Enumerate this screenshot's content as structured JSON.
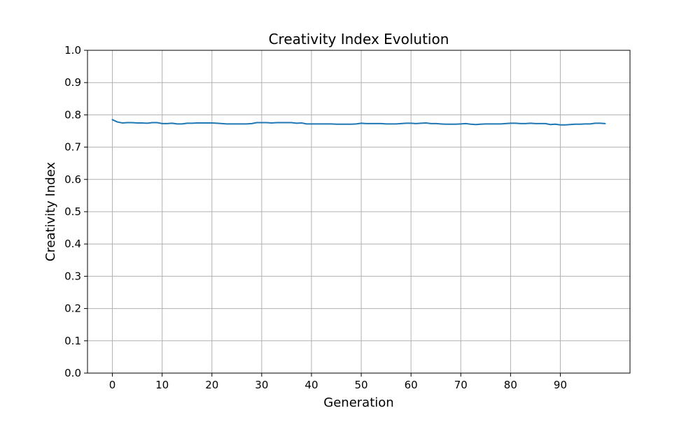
{
  "chart_data": {
    "type": "line",
    "title": "Creativity Index Evolution",
    "xlabel": "Generation",
    "ylabel": "Creativity Index",
    "xlim": [
      -5,
      104
    ],
    "ylim": [
      0,
      1
    ],
    "x_ticks": [
      0,
      10,
      20,
      30,
      40,
      50,
      60,
      70,
      80,
      90
    ],
    "y_ticks": [
      0.0,
      0.1,
      0.2,
      0.3,
      0.4,
      0.5,
      0.6,
      0.7,
      0.8,
      0.9,
      1.0
    ],
    "x_tick_labels": [
      "0",
      "10",
      "20",
      "30",
      "40",
      "50",
      "60",
      "70",
      "80",
      "90"
    ],
    "y_tick_labels": [
      "0.0",
      "0.1",
      "0.2",
      "0.3",
      "0.4",
      "0.5",
      "0.6",
      "0.7",
      "0.8",
      "0.9",
      "1.0"
    ],
    "grid": true,
    "series": [
      {
        "color": "#1f77b4",
        "x": [
          0,
          1,
          2,
          3,
          4,
          5,
          6,
          7,
          8,
          9,
          10,
          11,
          12,
          13,
          14,
          15,
          16,
          17,
          18,
          19,
          20,
          21,
          22,
          23,
          24,
          25,
          26,
          27,
          28,
          29,
          30,
          31,
          32,
          33,
          34,
          35,
          36,
          37,
          38,
          39,
          40,
          41,
          42,
          43,
          44,
          45,
          46,
          47,
          48,
          49,
          50,
          51,
          52,
          53,
          54,
          55,
          56,
          57,
          58,
          59,
          60,
          61,
          62,
          63,
          64,
          65,
          66,
          67,
          68,
          69,
          70,
          71,
          72,
          73,
          74,
          75,
          76,
          77,
          78,
          79,
          80,
          81,
          82,
          83,
          84,
          85,
          86,
          87,
          88,
          89,
          90,
          91,
          92,
          93,
          94,
          95,
          96,
          97,
          98,
          99
        ],
        "values": [
          0.785,
          0.778,
          0.775,
          0.776,
          0.776,
          0.775,
          0.775,
          0.774,
          0.776,
          0.776,
          0.773,
          0.773,
          0.774,
          0.772,
          0.772,
          0.774,
          0.774,
          0.775,
          0.775,
          0.775,
          0.775,
          0.774,
          0.773,
          0.772,
          0.772,
          0.772,
          0.772,
          0.772,
          0.773,
          0.776,
          0.776,
          0.776,
          0.775,
          0.776,
          0.776,
          0.776,
          0.776,
          0.774,
          0.775,
          0.772,
          0.772,
          0.772,
          0.772,
          0.772,
          0.772,
          0.771,
          0.771,
          0.771,
          0.771,
          0.772,
          0.774,
          0.773,
          0.773,
          0.773,
          0.773,
          0.772,
          0.772,
          0.772,
          0.773,
          0.774,
          0.774,
          0.773,
          0.774,
          0.775,
          0.773,
          0.773,
          0.772,
          0.771,
          0.771,
          0.771,
          0.772,
          0.773,
          0.771,
          0.77,
          0.771,
          0.772,
          0.772,
          0.772,
          0.772,
          0.773,
          0.774,
          0.774,
          0.773,
          0.773,
          0.774,
          0.773,
          0.773,
          0.773,
          0.77,
          0.771,
          0.769,
          0.769,
          0.77,
          0.771,
          0.771,
          0.772,
          0.772,
          0.774,
          0.774,
          0.773
        ]
      }
    ]
  }
}
